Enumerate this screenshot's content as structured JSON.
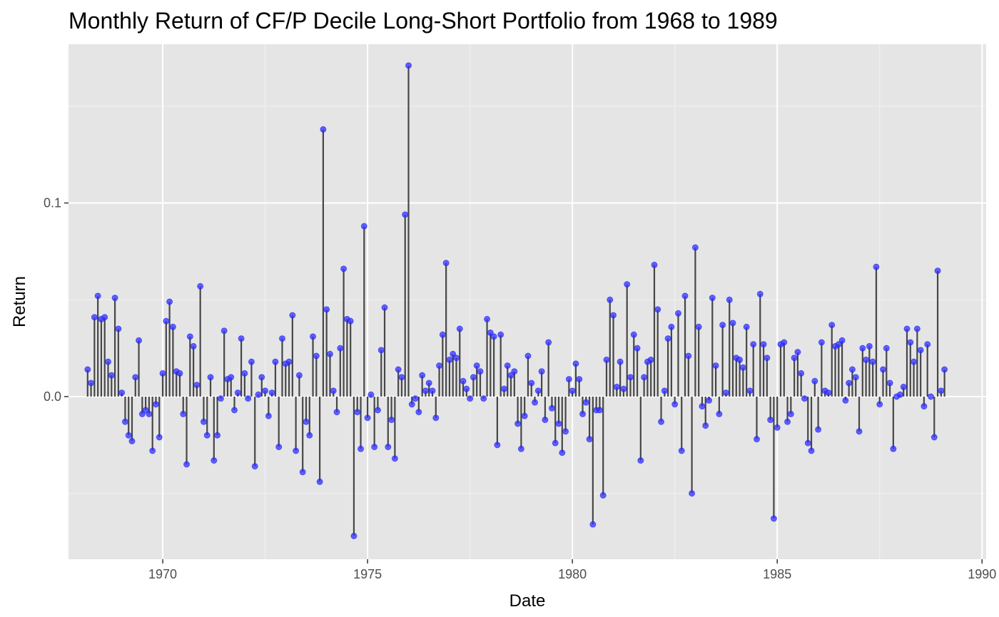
{
  "chart_data": {
    "type": "lollipop",
    "title": "Monthly Return of CF/P Decile Long-Short Portfolio from 1968 to 1989",
    "xlabel": "Date",
    "ylabel": "Return",
    "xlim": [
      1967.7,
      1990.1
    ],
    "ylim": [
      -0.084,
      0.182
    ],
    "x_ticks": [
      1970,
      1975,
      1980,
      1985,
      1990
    ],
    "x_tick_labels": [
      "1970",
      "1975",
      "1980",
      "1985",
      "1990"
    ],
    "y_ticks": [
      0.0,
      0.1
    ],
    "y_tick_labels": [
      "0.0",
      "0.1"
    ],
    "grid": true,
    "point_color": "#3333ff",
    "stem_color": "#474747",
    "series": [
      {
        "start": "1968-03",
        "frequency": "monthly",
        "values": [
          0.014,
          0.007,
          0.041,
          0.052,
          0.04,
          0.041,
          0.018,
          0.011,
          0.051,
          0.035,
          0.002,
          -0.013,
          -0.02,
          -0.023,
          0.01,
          0.029,
          -0.009,
          -0.007,
          -0.009,
          -0.028,
          -0.004,
          -0.021,
          0.012,
          0.039,
          0.049,
          0.036,
          0.013,
          0.012,
          -0.009,
          -0.035,
          0.031,
          0.026,
          0.006,
          0.057,
          -0.013,
          -0.02,
          0.01,
          -0.033,
          -0.02,
          -0.001,
          0.034,
          0.009,
          0.01,
          -0.007,
          0.002,
          0.03,
          0.012,
          -0.001,
          0.018,
          -0.036,
          0.001,
          0.01,
          0.003,
          -0.01,
          0.002,
          0.018,
          -0.026,
          0.03,
          0.017,
          0.018,
          0.042,
          -0.028,
          0.011,
          -0.039,
          -0.013,
          -0.02,
          0.031,
          0.021,
          -0.044,
          0.138,
          0.045,
          0.022,
          0.003,
          -0.008,
          0.025,
          0.066,
          0.04,
          0.039,
          -0.072,
          -0.008,
          -0.027,
          0.088,
          -0.011,
          0.001,
          -0.026,
          -0.007,
          0.024,
          0.046,
          -0.026,
          -0.012,
          -0.032,
          0.014,
          0.01,
          0.094,
          0.171,
          -0.004,
          -0.001,
          -0.008,
          0.011,
          0.003,
          0.007,
          0.003,
          -0.011,
          0.016,
          0.032,
          0.069,
          0.019,
          0.022,
          0.02,
          0.035,
          0.008,
          0.004,
          -0.001,
          0.01,
          0.016,
          0.013,
          -0.001,
          0.04,
          0.033,
          0.031,
          -0.025,
          0.032,
          0.004,
          0.016,
          0.011,
          0.013,
          -0.014,
          -0.027,
          -0.01,
          0.021,
          0.007,
          -0.003,
          0.003,
          0.013,
          -0.012,
          0.028,
          -0.006,
          -0.024,
          -0.014,
          -0.029,
          -0.018,
          0.009,
          0.003,
          0.017,
          0.009,
          -0.009,
          -0.003,
          -0.022,
          -0.066,
          -0.007,
          -0.007,
          -0.051,
          0.019,
          0.05,
          0.042,
          0.005,
          0.018,
          0.004,
          0.058,
          0.01,
          0.032,
          0.025,
          -0.033,
          0.01,
          0.018,
          0.019,
          0.068,
          0.045,
          -0.013,
          0.003,
          0.03,
          0.036,
          -0.004,
          0.043,
          -0.028,
          0.052,
          0.021,
          -0.05,
          0.077,
          0.036,
          -0.005,
          -0.015,
          -0.002,
          0.051,
          0.016,
          -0.009,
          0.037,
          0.002,
          0.05,
          0.038,
          0.02,
          0.019,
          0.015,
          0.036,
          0.003,
          0.027,
          -0.022,
          0.053,
          0.027,
          0.02,
          -0.012,
          -0.063,
          -0.016,
          0.027,
          0.028,
          -0.013,
          -0.009,
          0.02,
          0.023,
          0.012,
          -0.001,
          -0.024,
          -0.028,
          0.008,
          -0.017,
          0.028,
          0.003,
          0.002,
          0.037,
          0.026,
          0.027,
          0.029,
          -0.002,
          0.007,
          0.014,
          0.01,
          -0.018,
          0.025,
          0.019,
          0.026,
          0.018,
          0.067,
          -0.004,
          0.014,
          0.025,
          0.007,
          -0.027,
          0.0,
          0.001,
          0.005,
          0.035,
          0.028,
          0.018,
          0.035,
          0.024,
          -0.005,
          0.027,
          0.0,
          -0.021,
          0.065,
          0.003,
          0.014
        ]
      }
    ]
  }
}
